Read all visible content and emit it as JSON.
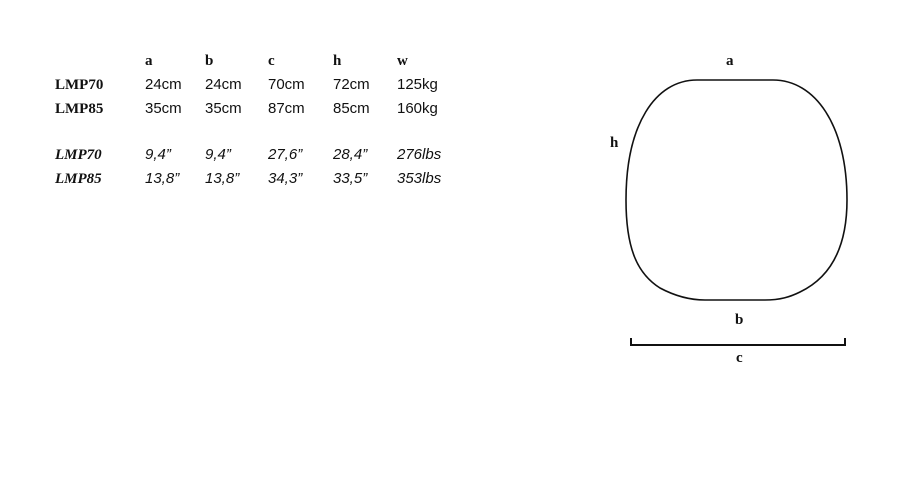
{
  "table": {
    "headers": [
      "a",
      "b",
      "c",
      "h",
      "w"
    ],
    "metric_rows": [
      {
        "model": "LMP70",
        "values": [
          "24cm",
          "24cm",
          "70cm",
          "72cm",
          "125kg"
        ]
      },
      {
        "model": "LMP85",
        "values": [
          "35cm",
          "35cm",
          "87cm",
          "85cm",
          "160kg"
        ]
      }
    ],
    "imperial_rows": [
      {
        "model": "LMP70",
        "values": [
          "9,4”",
          "9,4”",
          "27,6”",
          "28,4”",
          "276lbs"
        ]
      },
      {
        "model": "LMP85",
        "values": [
          "13,8”",
          "13,8”",
          "34,3”",
          "33,5”",
          "353lbs"
        ]
      }
    ]
  },
  "diagram": {
    "label_a": "a",
    "label_b": "b",
    "label_c": "c",
    "label_h": "h",
    "stroke_color": "#111111"
  }
}
